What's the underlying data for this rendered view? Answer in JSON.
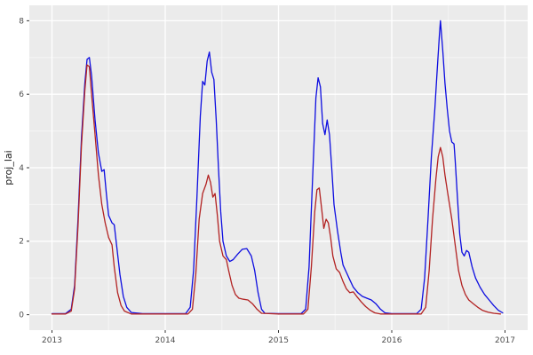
{
  "chart_data": {
    "type": "line",
    "title": "",
    "xlabel": "",
    "ylabel": "proj_lai",
    "legend": "none",
    "grid": true,
    "panel_bg": "#EBEBEB",
    "grid_major_color": "#FFFFFF",
    "grid_minor_alpha": 0.5,
    "axis_text_color": "#4D4D4D",
    "x_ticks": [
      2013,
      2014,
      2015,
      2016,
      2017
    ],
    "y_ticks": [
      0,
      2,
      4,
      6,
      8
    ],
    "x_minor": [
      2013.5,
      2014.5,
      2015.5,
      2016.5
    ],
    "y_minor": [
      1,
      3,
      5,
      7
    ],
    "xlim": [
      2012.8,
      2017.2
    ],
    "ylim": [
      -0.42,
      8.42
    ],
    "series": [
      {
        "name": "blue-series",
        "color": "#0D0DE0",
        "points": [
          [
            2013.0,
            0.03
          ],
          [
            2013.12,
            0.03
          ],
          [
            2013.17,
            0.15
          ],
          [
            2013.2,
            0.8
          ],
          [
            2013.23,
            2.6
          ],
          [
            2013.26,
            4.8
          ],
          [
            2013.29,
            6.3
          ],
          [
            2013.31,
            6.95
          ],
          [
            2013.33,
            7.0
          ],
          [
            2013.35,
            6.5
          ],
          [
            2013.38,
            5.3
          ],
          [
            2013.41,
            4.4
          ],
          [
            2013.44,
            3.9
          ],
          [
            2013.46,
            3.95
          ],
          [
            2013.48,
            3.3
          ],
          [
            2013.5,
            2.7
          ],
          [
            2013.53,
            2.5
          ],
          [
            2013.55,
            2.45
          ],
          [
            2013.57,
            1.9
          ],
          [
            2013.6,
            1.1
          ],
          [
            2013.63,
            0.5
          ],
          [
            2013.66,
            0.2
          ],
          [
            2013.7,
            0.06
          ],
          [
            2013.8,
            0.03
          ],
          [
            2014.0,
            0.03
          ],
          [
            2014.18,
            0.03
          ],
          [
            2014.22,
            0.2
          ],
          [
            2014.25,
            1.2
          ],
          [
            2014.28,
            3.2
          ],
          [
            2014.31,
            5.4
          ],
          [
            2014.33,
            6.35
          ],
          [
            2014.35,
            6.25
          ],
          [
            2014.37,
            6.9
          ],
          [
            2014.39,
            7.15
          ],
          [
            2014.41,
            6.6
          ],
          [
            2014.43,
            6.4
          ],
          [
            2014.45,
            5.3
          ],
          [
            2014.47,
            4.0
          ],
          [
            2014.49,
            2.8
          ],
          [
            2014.51,
            2.0
          ],
          [
            2014.54,
            1.6
          ],
          [
            2014.57,
            1.45
          ],
          [
            2014.6,
            1.5
          ],
          [
            2014.64,
            1.65
          ],
          [
            2014.68,
            1.78
          ],
          [
            2014.72,
            1.8
          ],
          [
            2014.76,
            1.6
          ],
          [
            2014.79,
            1.2
          ],
          [
            2014.82,
            0.6
          ],
          [
            2014.85,
            0.15
          ],
          [
            2014.88,
            0.04
          ],
          [
            2015.0,
            0.03
          ],
          [
            2015.2,
            0.03
          ],
          [
            2015.24,
            0.15
          ],
          [
            2015.27,
            1.3
          ],
          [
            2015.3,
            3.6
          ],
          [
            2015.33,
            5.9
          ],
          [
            2015.35,
            6.45
          ],
          [
            2015.37,
            6.2
          ],
          [
            2015.39,
            5.2
          ],
          [
            2015.41,
            4.9
          ],
          [
            2015.43,
            5.3
          ],
          [
            2015.45,
            4.9
          ],
          [
            2015.47,
            4.0
          ],
          [
            2015.49,
            3.0
          ],
          [
            2015.52,
            2.3
          ],
          [
            2015.55,
            1.7
          ],
          [
            2015.57,
            1.35
          ],
          [
            2015.6,
            1.15
          ],
          [
            2015.63,
            0.95
          ],
          [
            2015.66,
            0.75
          ],
          [
            2015.7,
            0.6
          ],
          [
            2015.74,
            0.5
          ],
          [
            2015.78,
            0.45
          ],
          [
            2015.82,
            0.4
          ],
          [
            2015.86,
            0.3
          ],
          [
            2015.9,
            0.15
          ],
          [
            2015.94,
            0.05
          ],
          [
            2016.0,
            0.03
          ],
          [
            2016.22,
            0.03
          ],
          [
            2016.26,
            0.15
          ],
          [
            2016.29,
            1.0
          ],
          [
            2016.32,
            2.6
          ],
          [
            2016.35,
            4.3
          ],
          [
            2016.38,
            5.6
          ],
          [
            2016.4,
            6.6
          ],
          [
            2016.42,
            7.6
          ],
          [
            2016.43,
            8.0
          ],
          [
            2016.45,
            7.2
          ],
          [
            2016.47,
            6.3
          ],
          [
            2016.49,
            5.6
          ],
          [
            2016.51,
            5.0
          ],
          [
            2016.53,
            4.7
          ],
          [
            2016.55,
            4.65
          ],
          [
            2016.56,
            4.2
          ],
          [
            2016.58,
            3.2
          ],
          [
            2016.6,
            2.2
          ],
          [
            2016.62,
            1.7
          ],
          [
            2016.64,
            1.6
          ],
          [
            2016.66,
            1.75
          ],
          [
            2016.68,
            1.7
          ],
          [
            2016.71,
            1.3
          ],
          [
            2016.74,
            1.0
          ],
          [
            2016.78,
            0.75
          ],
          [
            2016.82,
            0.55
          ],
          [
            2016.86,
            0.4
          ],
          [
            2016.9,
            0.25
          ],
          [
            2016.94,
            0.12
          ],
          [
            2016.98,
            0.05
          ]
        ]
      },
      {
        "name": "red-series",
        "color": "#B22222",
        "points": [
          [
            2013.0,
            0.02
          ],
          [
            2013.12,
            0.02
          ],
          [
            2013.17,
            0.1
          ],
          [
            2013.2,
            0.7
          ],
          [
            2013.23,
            2.4
          ],
          [
            2013.26,
            4.6
          ],
          [
            2013.29,
            6.1
          ],
          [
            2013.31,
            6.8
          ],
          [
            2013.33,
            6.75
          ],
          [
            2013.35,
            6.0
          ],
          [
            2013.38,
            4.9
          ],
          [
            2013.41,
            3.8
          ],
          [
            2013.44,
            3.0
          ],
          [
            2013.47,
            2.5
          ],
          [
            2013.5,
            2.1
          ],
          [
            2013.53,
            1.9
          ],
          [
            2013.55,
            1.3
          ],
          [
            2013.58,
            0.6
          ],
          [
            2013.61,
            0.25
          ],
          [
            2013.64,
            0.1
          ],
          [
            2013.7,
            0.02
          ],
          [
            2014.0,
            0.02
          ],
          [
            2014.2,
            0.02
          ],
          [
            2014.24,
            0.15
          ],
          [
            2014.27,
            1.1
          ],
          [
            2014.3,
            2.6
          ],
          [
            2014.33,
            3.3
          ],
          [
            2014.36,
            3.55
          ],
          [
            2014.38,
            3.8
          ],
          [
            2014.4,
            3.6
          ],
          [
            2014.42,
            3.2
          ],
          [
            2014.44,
            3.3
          ],
          [
            2014.46,
            2.7
          ],
          [
            2014.48,
            2.0
          ],
          [
            2014.51,
            1.6
          ],
          [
            2014.54,
            1.5
          ],
          [
            2014.56,
            1.2
          ],
          [
            2014.59,
            0.8
          ],
          [
            2014.62,
            0.55
          ],
          [
            2014.65,
            0.45
          ],
          [
            2014.69,
            0.42
          ],
          [
            2014.73,
            0.4
          ],
          [
            2014.77,
            0.3
          ],
          [
            2014.81,
            0.15
          ],
          [
            2014.85,
            0.04
          ],
          [
            2015.0,
            0.02
          ],
          [
            2015.22,
            0.02
          ],
          [
            2015.26,
            0.15
          ],
          [
            2015.29,
            1.3
          ],
          [
            2015.32,
            2.8
          ],
          [
            2015.34,
            3.4
          ],
          [
            2015.36,
            3.45
          ],
          [
            2015.38,
            2.9
          ],
          [
            2015.4,
            2.35
          ],
          [
            2015.42,
            2.6
          ],
          [
            2015.44,
            2.5
          ],
          [
            2015.46,
            2.1
          ],
          [
            2015.48,
            1.6
          ],
          [
            2015.51,
            1.25
          ],
          [
            2015.54,
            1.15
          ],
          [
            2015.57,
            0.9
          ],
          [
            2015.6,
            0.7
          ],
          [
            2015.63,
            0.6
          ],
          [
            2015.66,
            0.62
          ],
          [
            2015.69,
            0.5
          ],
          [
            2015.73,
            0.35
          ],
          [
            2015.77,
            0.22
          ],
          [
            2015.81,
            0.12
          ],
          [
            2015.85,
            0.05
          ],
          [
            2015.9,
            0.02
          ],
          [
            2016.0,
            0.02
          ],
          [
            2016.26,
            0.02
          ],
          [
            2016.3,
            0.2
          ],
          [
            2016.33,
            1.2
          ],
          [
            2016.36,
            2.6
          ],
          [
            2016.39,
            3.7
          ],
          [
            2016.41,
            4.3
          ],
          [
            2016.43,
            4.55
          ],
          [
            2016.45,
            4.3
          ],
          [
            2016.47,
            3.8
          ],
          [
            2016.5,
            3.2
          ],
          [
            2016.53,
            2.6
          ],
          [
            2016.56,
            1.9
          ],
          [
            2016.59,
            1.2
          ],
          [
            2016.62,
            0.8
          ],
          [
            2016.65,
            0.55
          ],
          [
            2016.68,
            0.4
          ],
          [
            2016.72,
            0.3
          ],
          [
            2016.76,
            0.2
          ],
          [
            2016.8,
            0.12
          ],
          [
            2016.85,
            0.07
          ],
          [
            2016.9,
            0.04
          ],
          [
            2016.96,
            0.02
          ]
        ]
      }
    ]
  }
}
